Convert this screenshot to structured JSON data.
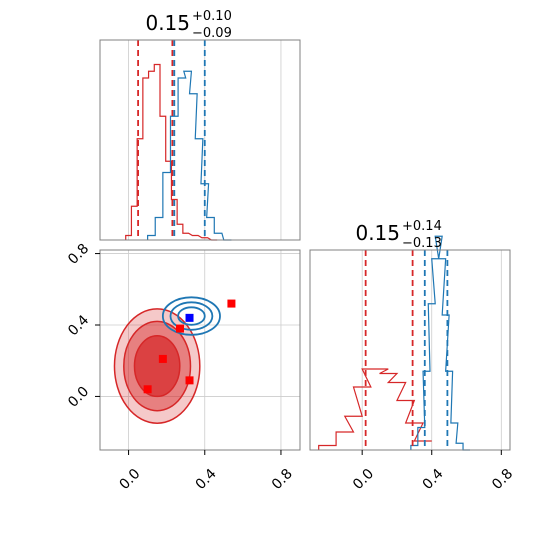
{
  "colors": {
    "red": "#d62728",
    "blue": "#1f77b4",
    "grid": "#cccccc",
    "axis": "#808080",
    "marker_red": "#ff0000",
    "marker_blue": "#0000ff"
  },
  "chart_data": {
    "type": "corner",
    "grid": true,
    "panels": [
      {
        "id": "hist_param1",
        "type": "histogram",
        "title": {
          "value": "0.15",
          "plus": "+0.10",
          "minus": "−0.09"
        },
        "xlim": [
          -0.15,
          0.9
        ],
        "vlines": [
          {
            "series": "red",
            "values": [
              0.05,
              0.23
            ]
          },
          {
            "series": "blue",
            "values": [
              0.24,
              0.4
            ]
          }
        ],
        "series": [
          {
            "color": "red",
            "x": [
              0.0,
              0.03,
              0.06,
              0.09,
              0.12,
              0.15,
              0.18,
              0.21,
              0.24,
              0.27,
              0.3,
              0.35,
              0.4,
              0.45
            ],
            "y": [
              0.02,
              0.15,
              0.45,
              0.72,
              0.75,
              0.78,
              0.55,
              0.35,
              0.18,
              0.07,
              0.03,
              0.02,
              0.01,
              0.0
            ]
          },
          {
            "color": "blue",
            "x": [
              0.12,
              0.16,
              0.2,
              0.24,
              0.28,
              0.31,
              0.34,
              0.37,
              0.4,
              0.43,
              0.47,
              0.52
            ],
            "y": [
              0.02,
              0.1,
              0.3,
              0.55,
              0.72,
              0.75,
              0.65,
              0.45,
              0.25,
              0.1,
              0.03,
              0.0
            ]
          }
        ]
      },
      {
        "id": "hist_param2",
        "type": "histogram",
        "title": {
          "value": "0.15",
          "plus": "+0.14",
          "minus": "−0.13"
        },
        "xlim": [
          -0.3,
          0.85
        ],
        "xticks": [
          "0.0",
          "0.4",
          "0.8"
        ],
        "vlines": [
          {
            "series": "red",
            "values": [
              0.02,
              0.29
            ]
          },
          {
            "series": "blue",
            "values": [
              0.36,
              0.49
            ]
          }
        ],
        "series": [
          {
            "color": "red",
            "x": [
              -0.2,
              -0.1,
              -0.05,
              0.0,
              0.05,
              0.1,
              0.15,
              0.2,
              0.25,
              0.3,
              0.35
            ],
            "y": [
              0.02,
              0.08,
              0.15,
              0.28,
              0.36,
              0.36,
              0.34,
              0.3,
              0.22,
              0.12,
              0.04
            ]
          },
          {
            "color": "blue",
            "x": [
              0.3,
              0.34,
              0.37,
              0.4,
              0.42,
              0.44,
              0.46,
              0.48,
              0.5,
              0.53,
              0.56,
              0.6
            ],
            "y": [
              0.02,
              0.1,
              0.35,
              0.65,
              0.85,
              0.95,
              0.85,
              0.6,
              0.35,
              0.12,
              0.03,
              0.0
            ]
          }
        ]
      },
      {
        "id": "scatter_2d",
        "type": "contour",
        "xlim": [
          -0.15,
          0.9
        ],
        "ylim": [
          -0.3,
          0.82
        ],
        "xticks": [
          "0.0",
          "0.4",
          "0.8"
        ],
        "yticks": [
          "0.0",
          "0.4",
          "0.8"
        ],
        "series": [
          {
            "color": "red",
            "center": [
              0.15,
              0.17
            ],
            "spread": [
              0.14,
              0.2
            ]
          },
          {
            "color": "blue",
            "center": [
              0.33,
              0.45
            ],
            "spread": [
              0.1,
              0.07
            ]
          }
        ],
        "markers": [
          {
            "color": "red",
            "x": 0.54,
            "y": 0.52
          },
          {
            "color": "red",
            "x": 0.27,
            "y": 0.38
          },
          {
            "color": "red",
            "x": 0.18,
            "y": 0.21
          },
          {
            "color": "red",
            "x": 0.32,
            "y": 0.09
          },
          {
            "color": "red",
            "x": 0.1,
            "y": 0.04
          },
          {
            "color": "blue",
            "x": 0.32,
            "y": 0.44
          }
        ]
      }
    ]
  }
}
